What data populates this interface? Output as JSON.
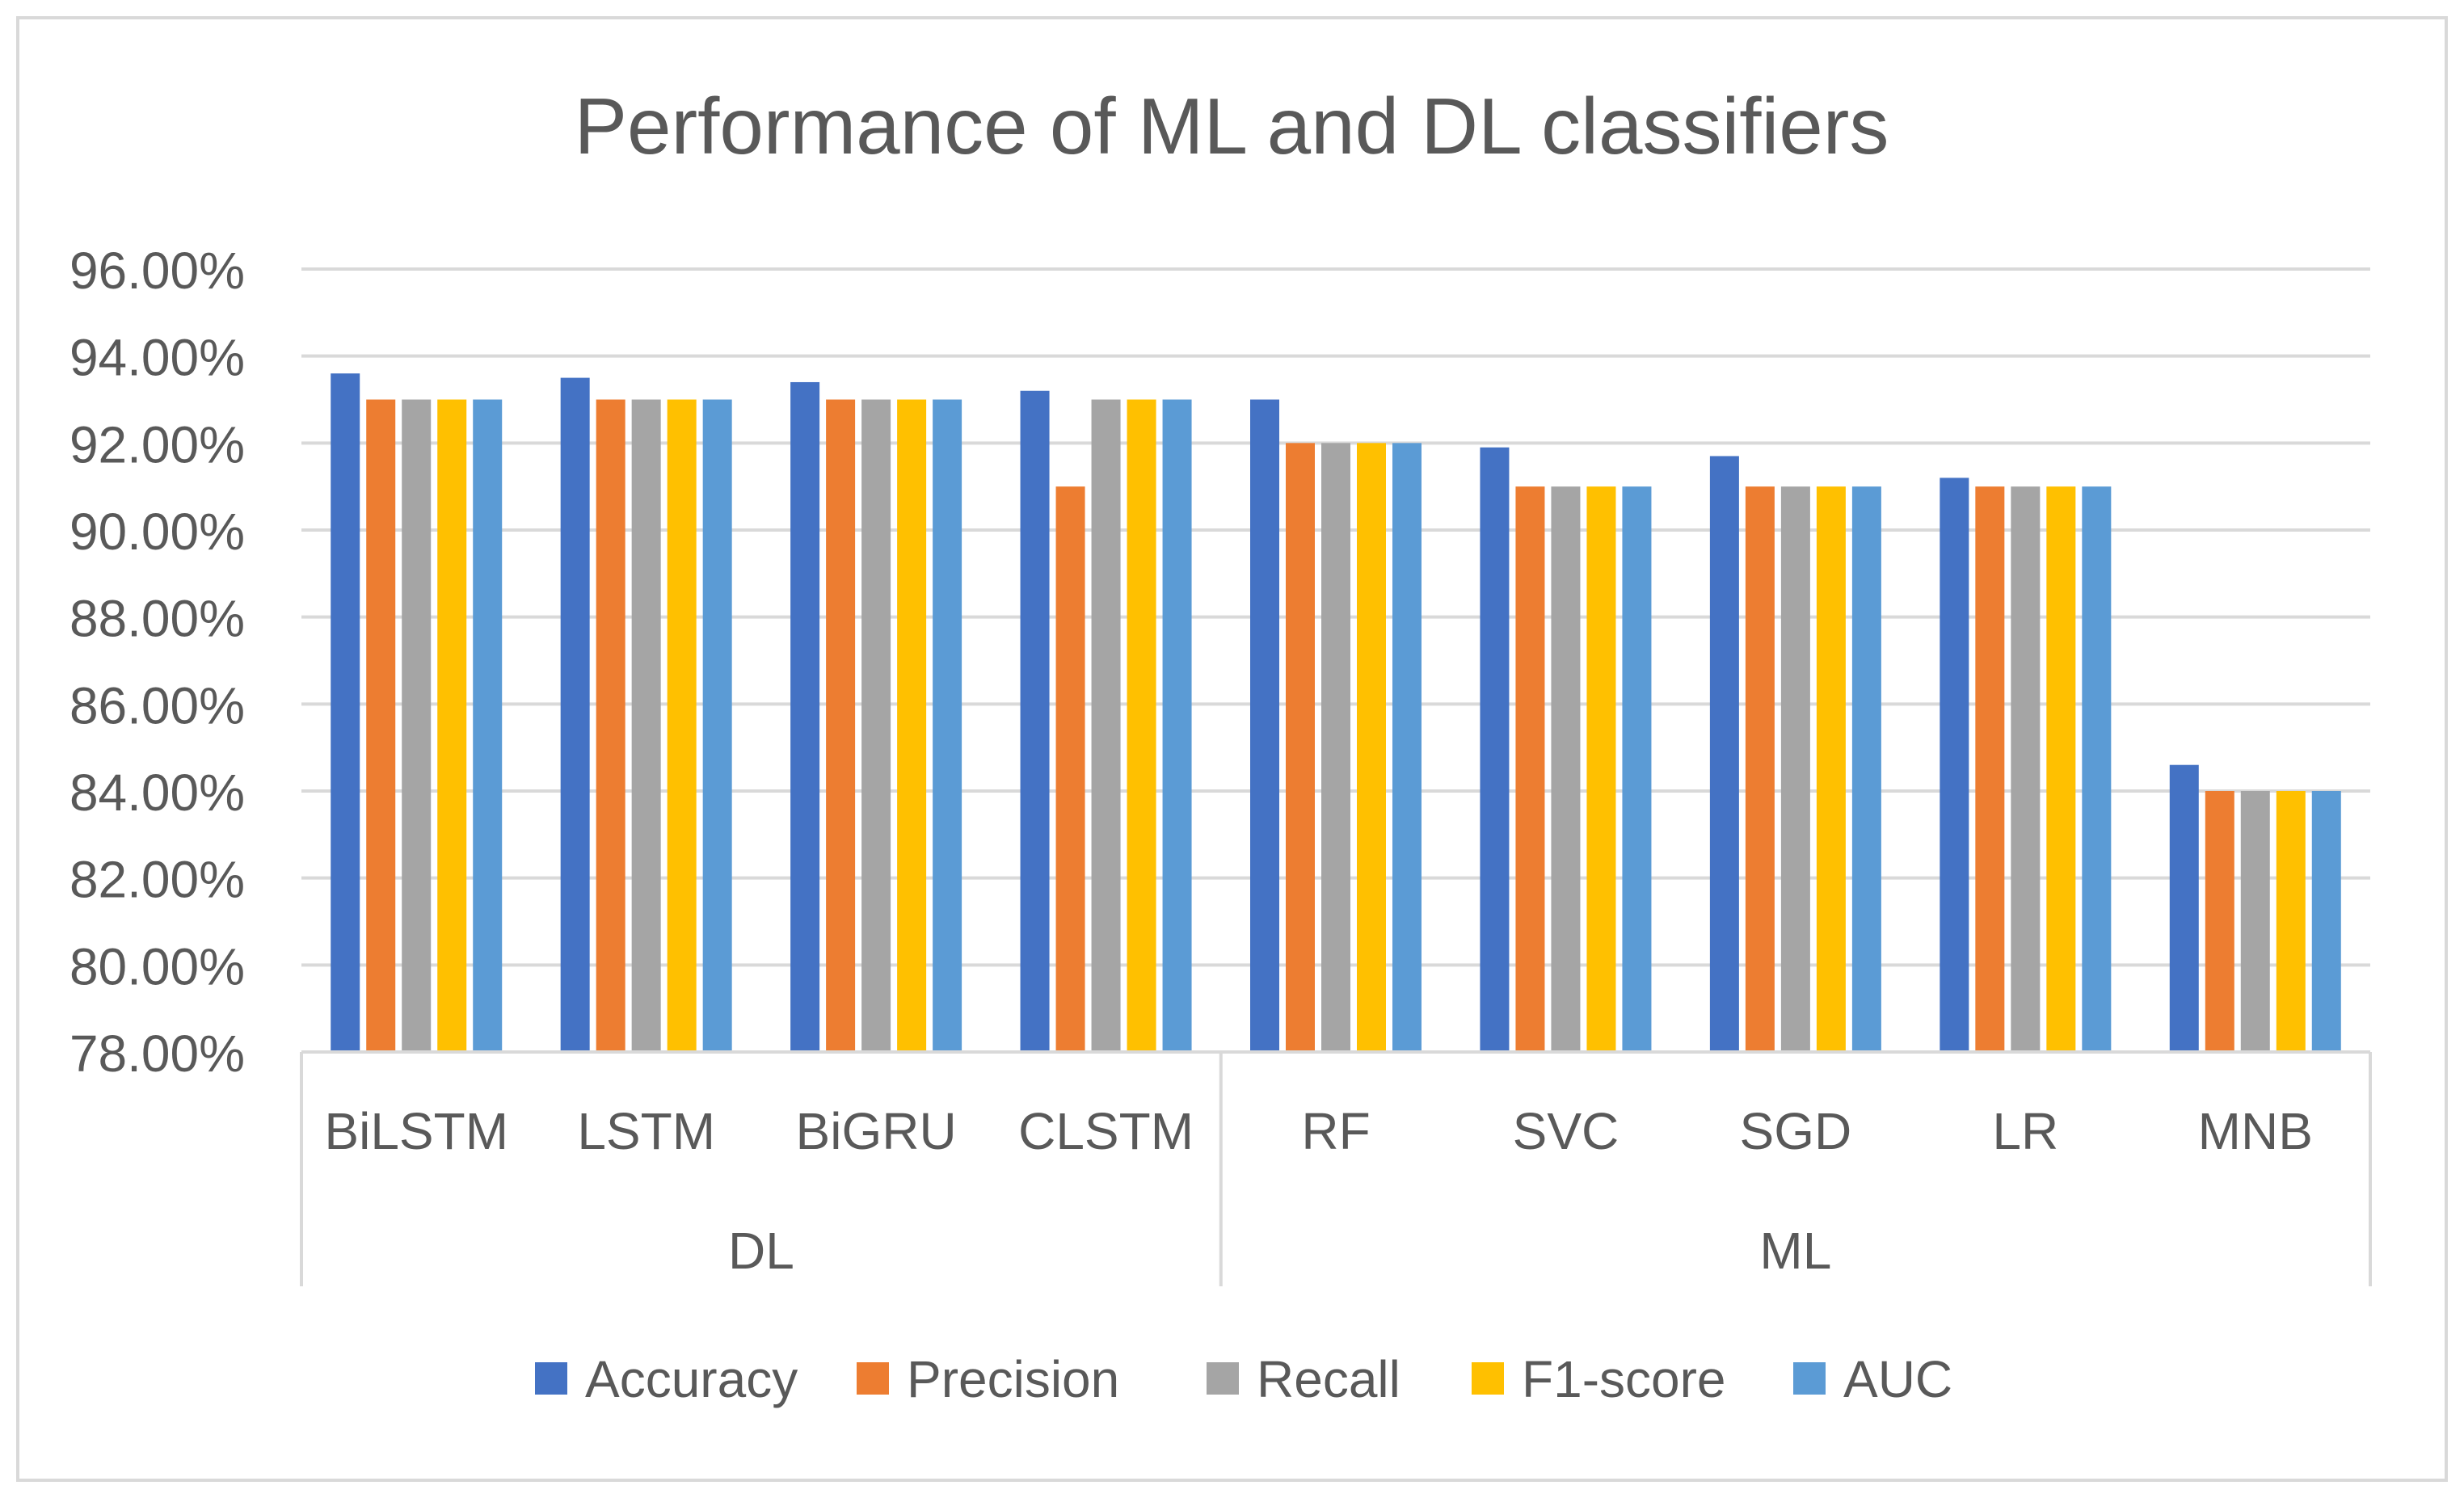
{
  "chart_data": {
    "type": "bar",
    "title": "Performance of ML and DL classifiers",
    "xlabel": "",
    "ylabel": "",
    "ylim": [
      0.78,
      0.96
    ],
    "y_ticks": [
      0.78,
      0.8,
      0.82,
      0.84,
      0.86,
      0.88,
      0.9,
      0.92,
      0.94,
      0.96
    ],
    "y_tick_labels": [
      "78.00%",
      "80.00%",
      "82.00%",
      "84.00%",
      "86.00%",
      "88.00%",
      "90.00%",
      "92.00%",
      "94.00%",
      "96.00%"
    ],
    "grid": true,
    "legend_position": "bottom",
    "categories": [
      "BiLSTM",
      "LSTM",
      "BiGRU",
      "CLSTM",
      "RF",
      "SVC",
      "SGD",
      "LR",
      "MNB"
    ],
    "groups": [
      {
        "label": "DL",
        "count": 4
      },
      {
        "label": "ML",
        "count": 5
      }
    ],
    "series": [
      {
        "name": "Accuracy",
        "color": "#4472C4",
        "values": [
          0.936,
          0.935,
          0.934,
          0.932,
          0.93,
          0.919,
          0.917,
          0.912,
          0.846
        ]
      },
      {
        "name": "Precision",
        "color": "#ED7D31",
        "values": [
          0.93,
          0.93,
          0.93,
          0.91,
          0.92,
          0.91,
          0.91,
          0.91,
          0.84
        ]
      },
      {
        "name": "Recall",
        "color": "#A5A5A5",
        "values": [
          0.93,
          0.93,
          0.93,
          0.93,
          0.92,
          0.91,
          0.91,
          0.91,
          0.84
        ]
      },
      {
        "name": "F1-score",
        "color": "#FFC000",
        "values": [
          0.93,
          0.93,
          0.93,
          0.93,
          0.92,
          0.91,
          0.91,
          0.91,
          0.84
        ]
      },
      {
        "name": "AUC",
        "color": "#5B9BD5",
        "values": [
          0.93,
          0.93,
          0.93,
          0.93,
          0.92,
          0.91,
          0.91,
          0.91,
          0.84
        ]
      }
    ]
  }
}
